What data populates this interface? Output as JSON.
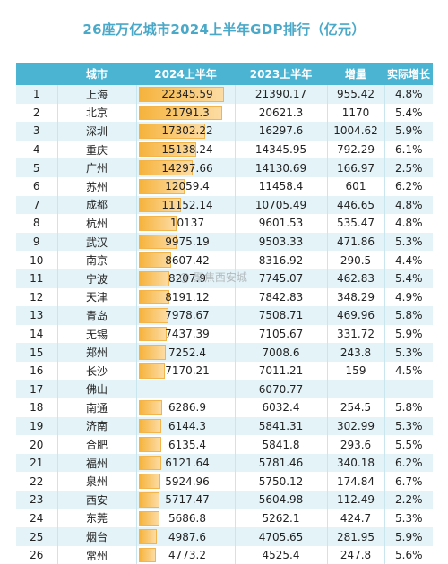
{
  "title": "26座万亿城市2024上半年GDP排行（亿元）",
  "headers": [
    "",
    "城市",
    "2024上半年",
    "2023上半年",
    "增量",
    "实际增长"
  ],
  "watermark": "@ 聚焦西安城",
  "colors": {
    "header_bg": "#4cb4d3",
    "title": "#4aa9c8",
    "row_alt": "#e4f3f8",
    "bar": "#f6b33c"
  },
  "rows": [
    {
      "rank": "1",
      "city": "上海",
      "gdp2024": "22345.59",
      "gdp2023": "21390.17",
      "increase": "955.42",
      "growth": "4.8%"
    },
    {
      "rank": "2",
      "city": "北京",
      "gdp2024": "21791.3",
      "gdp2023": "20621.3",
      "increase": "1170",
      "growth": "5.4%"
    },
    {
      "rank": "3",
      "city": "深圳",
      "gdp2024": "17302.22",
      "gdp2023": "16297.6",
      "increase": "1004.62",
      "growth": "5.9%"
    },
    {
      "rank": "4",
      "city": "重庆",
      "gdp2024": "15138.24",
      "gdp2023": "14345.95",
      "increase": "792.29",
      "growth": "6.1%"
    },
    {
      "rank": "5",
      "city": "广州",
      "gdp2024": "14297.66",
      "gdp2023": "14130.69",
      "increase": "166.97",
      "growth": "2.5%"
    },
    {
      "rank": "6",
      "city": "苏州",
      "gdp2024": "12059.4",
      "gdp2023": "11458.4",
      "increase": "601",
      "growth": "6.2%"
    },
    {
      "rank": "7",
      "city": "成都",
      "gdp2024": "11152.14",
      "gdp2023": "10705.49",
      "increase": "446.65",
      "growth": "4.8%"
    },
    {
      "rank": "8",
      "city": "杭州",
      "gdp2024": "10137",
      "gdp2023": "9601.53",
      "increase": "535.47",
      "growth": "4.8%"
    },
    {
      "rank": "9",
      "city": "武汉",
      "gdp2024": "9975.19",
      "gdp2023": "9503.33",
      "increase": "471.86",
      "growth": "5.3%"
    },
    {
      "rank": "10",
      "city": "南京",
      "gdp2024": "8607.42",
      "gdp2023": "8316.92",
      "increase": "290.5",
      "growth": "4.4%"
    },
    {
      "rank": "11",
      "city": "宁波",
      "gdp2024": "8207.9",
      "gdp2023": "7745.07",
      "increase": "462.83",
      "growth": "5.4%"
    },
    {
      "rank": "12",
      "city": "天津",
      "gdp2024": "8191.12",
      "gdp2023": "7842.83",
      "increase": "348.29",
      "growth": "4.9%"
    },
    {
      "rank": "13",
      "city": "青岛",
      "gdp2024": "7978.67",
      "gdp2023": "7508.71",
      "increase": "469.96",
      "growth": "5.8%"
    },
    {
      "rank": "14",
      "city": "无锡",
      "gdp2024": "7437.39",
      "gdp2023": "7105.67",
      "increase": "331.72",
      "growth": "5.9%"
    },
    {
      "rank": "15",
      "city": "郑州",
      "gdp2024": "7252.4",
      "gdp2023": "7008.6",
      "increase": "243.8",
      "growth": "5.3%"
    },
    {
      "rank": "16",
      "city": "长沙",
      "gdp2024": "7170.21",
      "gdp2023": "7011.21",
      "increase": "159",
      "growth": "4.5%"
    },
    {
      "rank": "17",
      "city": "佛山",
      "gdp2024": "",
      "gdp2023": "6070.77",
      "increase": "",
      "growth": ""
    },
    {
      "rank": "18",
      "city": "南通",
      "gdp2024": "6286.9",
      "gdp2023": "6032.4",
      "increase": "254.5",
      "growth": "5.8%"
    },
    {
      "rank": "19",
      "city": "济南",
      "gdp2024": "6144.3",
      "gdp2023": "5841.31",
      "increase": "302.99",
      "growth": "5.3%"
    },
    {
      "rank": "20",
      "city": "合肥",
      "gdp2024": "6135.4",
      "gdp2023": "5841.8",
      "increase": "293.6",
      "growth": "5.5%"
    },
    {
      "rank": "21",
      "city": "福州",
      "gdp2024": "6121.64",
      "gdp2023": "5781.46",
      "increase": "340.18",
      "growth": "6.2%"
    },
    {
      "rank": "22",
      "city": "泉州",
      "gdp2024": "5924.96",
      "gdp2023": "5750.12",
      "increase": "174.84",
      "growth": "6.7%"
    },
    {
      "rank": "23",
      "city": "西安",
      "gdp2024": "5717.47",
      "gdp2023": "5604.98",
      "increase": "112.49",
      "growth": "2.2%"
    },
    {
      "rank": "24",
      "city": "东莞",
      "gdp2024": "5686.8",
      "gdp2023": "5262.1",
      "increase": "424.7",
      "growth": "5.3%"
    },
    {
      "rank": "25",
      "city": "烟台",
      "gdp2024": "4987.6",
      "gdp2023": "4705.65",
      "increase": "281.95",
      "growth": "5.9%"
    },
    {
      "rank": "26",
      "city": "常州",
      "gdp2024": "4773.2",
      "gdp2023": "4525.4",
      "increase": "247.8",
      "growth": "5.6%"
    }
  ]
}
